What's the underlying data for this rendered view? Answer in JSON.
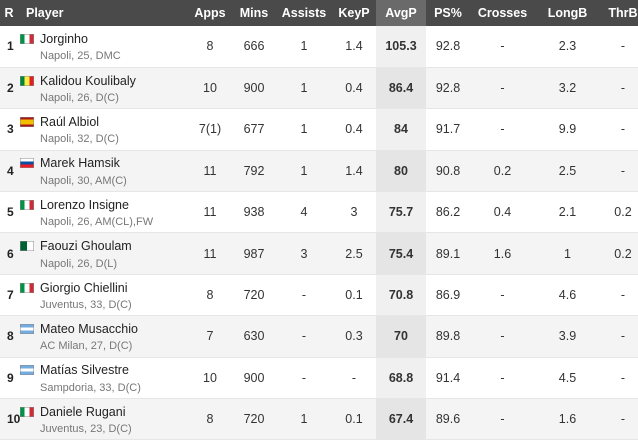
{
  "columns": {
    "rank": "R",
    "player": "Player",
    "apps": "Apps",
    "mins": "Mins",
    "assists": "Assists",
    "keyp": "KeyP",
    "avgp": "AvgP",
    "ps": "PS%",
    "crosses": "Crosses",
    "longb": "LongB",
    "thrb": "ThrB"
  },
  "sorted_column": "AvgP",
  "flag_colors": {
    "italy": [
      "#009246",
      "#ffffff",
      "#ce2b37"
    ],
    "senegal": [
      "#00853f",
      "#fdef42",
      "#e31b23"
    ],
    "spain": [
      "#aa151b",
      "#f1bf00",
      "#aa151b"
    ],
    "slovakia": [
      "#ffffff",
      "#0b4ea2",
      "#ee1c25"
    ],
    "algeria": [
      "#006233",
      "#ffffff",
      "#d21034"
    ],
    "argentina": [
      "#74acdf",
      "#ffffff",
      "#74acdf"
    ]
  },
  "rows": [
    {
      "rank": "1",
      "flag": "italy",
      "name": "Jorginho",
      "info": "Napoli, 25, DMC",
      "apps": "8",
      "mins": "666",
      "assists": "1",
      "keyp": "1.4",
      "avgp": "105.3",
      "ps": "92.8",
      "crosses": "-",
      "longb": "2.3",
      "thrb": "-"
    },
    {
      "rank": "2",
      "flag": "senegal",
      "name": "Kalidou Koulibaly",
      "info": "Napoli, 26, D(C)",
      "apps": "10",
      "mins": "900",
      "assists": "1",
      "keyp": "0.4",
      "avgp": "86.4",
      "ps": "92.8",
      "crosses": "-",
      "longb": "3.2",
      "thrb": "-"
    },
    {
      "rank": "3",
      "flag": "spain",
      "name": "Raúl Albiol",
      "info": "Napoli, 32, D(C)",
      "apps": "7(1)",
      "mins": "677",
      "assists": "1",
      "keyp": "0.4",
      "avgp": "84",
      "ps": "91.7",
      "crosses": "-",
      "longb": "9.9",
      "thrb": "-"
    },
    {
      "rank": "4",
      "flag": "slovakia",
      "name": "Marek Hamsik",
      "info": "Napoli, 30, AM(C)",
      "apps": "11",
      "mins": "792",
      "assists": "1",
      "keyp": "1.4",
      "avgp": "80",
      "ps": "90.8",
      "crosses": "0.2",
      "longb": "2.5",
      "thrb": "-"
    },
    {
      "rank": "5",
      "flag": "italy",
      "name": "Lorenzo Insigne",
      "info": "Napoli, 26, AM(CL),FW",
      "apps": "11",
      "mins": "938",
      "assists": "4",
      "keyp": "3",
      "avgp": "75.7",
      "ps": "86.2",
      "crosses": "0.4",
      "longb": "2.1",
      "thrb": "0.2"
    },
    {
      "rank": "6",
      "flag": "algeria",
      "name": "Faouzi Ghoulam",
      "info": "Napoli, 26, D(L)",
      "apps": "11",
      "mins": "987",
      "assists": "3",
      "keyp": "2.5",
      "avgp": "75.4",
      "ps": "89.1",
      "crosses": "1.6",
      "longb": "1",
      "thrb": "0.2"
    },
    {
      "rank": "7",
      "flag": "italy",
      "name": "Giorgio Chiellini",
      "info": "Juventus, 33, D(C)",
      "apps": "8",
      "mins": "720",
      "assists": "-",
      "keyp": "0.1",
      "avgp": "70.8",
      "ps": "86.9",
      "crosses": "-",
      "longb": "4.6",
      "thrb": "-"
    },
    {
      "rank": "8",
      "flag": "argentina",
      "name": "Mateo Musacchio",
      "info": "AC Milan, 27, D(C)",
      "apps": "7",
      "mins": "630",
      "assists": "-",
      "keyp": "0.3",
      "avgp": "70",
      "ps": "89.8",
      "crosses": "-",
      "longb": "3.9",
      "thrb": "-"
    },
    {
      "rank": "9",
      "flag": "argentina",
      "name": "Matías Silvestre",
      "info": "Sampdoria, 33, D(C)",
      "apps": "10",
      "mins": "900",
      "assists": "-",
      "keyp": "-",
      "avgp": "68.8",
      "ps": "91.4",
      "crosses": "-",
      "longb": "4.5",
      "thrb": "-"
    },
    {
      "rank": "10",
      "flag": "italy",
      "name": "Daniele Rugani",
      "info": "Juventus, 23, D(C)",
      "apps": "8",
      "mins": "720",
      "assists": "1",
      "keyp": "0.1",
      "avgp": "67.4",
      "ps": "89.6",
      "crosses": "-",
      "longb": "1.6",
      "thrb": "-"
    }
  ]
}
